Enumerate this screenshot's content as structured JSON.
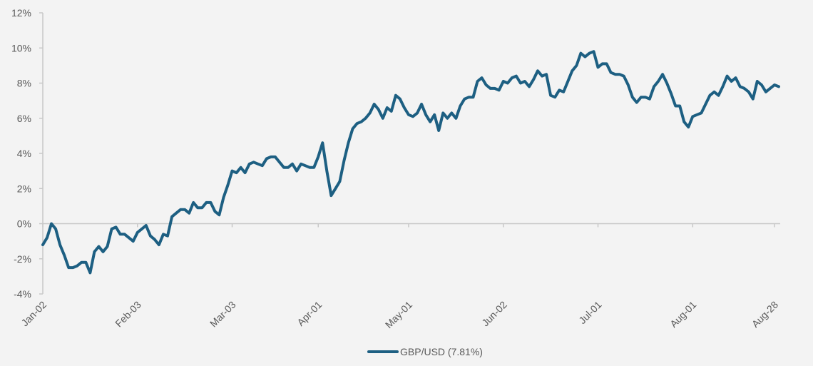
{
  "chart_data": {
    "type": "line",
    "title": "",
    "xlabel": "",
    "ylabel": "",
    "ylim": [
      -0.04,
      0.12
    ],
    "y_ticks": [
      -0.04,
      -0.02,
      0,
      0.02,
      0.04,
      0.06,
      0.08,
      0.1,
      0.12
    ],
    "y_tick_labels": [
      "-4%",
      "-2%",
      "0%",
      "2%",
      "4%",
      "6%",
      "8%",
      "10%",
      "12%"
    ],
    "x_tick_labels": [
      "Jan-02",
      "Feb-03",
      "Mar-03",
      "Apr-01",
      "May-01",
      "Jun-02",
      "Jul-01",
      "Aug-01",
      "Aug-28"
    ],
    "x_tick_positions": [
      0,
      22,
      44,
      64,
      85,
      107,
      129,
      151,
      170
    ],
    "grid": {
      "horizontal": false,
      "vertical": false,
      "zero_line": true
    },
    "legend_position": "bottom-center",
    "colors": {
      "series": "#1d5f82",
      "axis": "#c8c8c8",
      "text": "#595959",
      "background": "#f3f3f3"
    },
    "series": [
      {
        "name": "GBP/USD (7.81%)",
        "values": [
          -0.012,
          -0.008,
          0,
          -0.003,
          -0.012,
          -0.018,
          -0.025,
          -0.025,
          -0.024,
          -0.022,
          -0.022,
          -0.028,
          -0.016,
          -0.013,
          -0.016,
          -0.013,
          -0.003,
          -0.002,
          -0.006,
          -0.006,
          -0.008,
          -0.01,
          -0.005,
          -0.003,
          -0.001,
          -0.007,
          -0.009,
          -0.012,
          -0.006,
          -0.007,
          0.004,
          0.006,
          0.008,
          0.008,
          0.006,
          0.012,
          0.009,
          0.009,
          0.012,
          0.012,
          0.007,
          0.005,
          0.015,
          0.022,
          0.03,
          0.029,
          0.032,
          0.029,
          0.034,
          0.035,
          0.034,
          0.033,
          0.037,
          0.038,
          0.038,
          0.035,
          0.032,
          0.032,
          0.034,
          0.03,
          0.034,
          0.033,
          0.032,
          0.032,
          0.038,
          0.046,
          0.03,
          0.016,
          0.02,
          0.024,
          0.036,
          0.046,
          0.054,
          0.057,
          0.058,
          0.06,
          0.063,
          0.068,
          0.065,
          0.06,
          0.066,
          0.064,
          0.073,
          0.071,
          0.066,
          0.062,
          0.061,
          0.063,
          0.068,
          0.062,
          0.058,
          0.062,
          0.053,
          0.063,
          0.06,
          0.063,
          0.06,
          0.067,
          0.071,
          0.072,
          0.072,
          0.081,
          0.083,
          0.079,
          0.077,
          0.077,
          0.076,
          0.081,
          0.08,
          0.083,
          0.084,
          0.08,
          0.081,
          0.078,
          0.082,
          0.087,
          0.084,
          0.085,
          0.073,
          0.072,
          0.076,
          0.075,
          0.081,
          0.087,
          0.09,
          0.097,
          0.095,
          0.097,
          0.098,
          0.089,
          0.091,
          0.091,
          0.086,
          0.085,
          0.085,
          0.084,
          0.079,
          0.072,
          0.069,
          0.072,
          0.072,
          0.071,
          0.078,
          0.081,
          0.085,
          0.08,
          0.074,
          0.067,
          0.067,
          0.058,
          0.055,
          0.061,
          0.062,
          0.063,
          0.068,
          0.073,
          0.075,
          0.073,
          0.078,
          0.084,
          0.081,
          0.083,
          0.078,
          0.077,
          0.075,
          0.071,
          0.081,
          0.079,
          0.075,
          0.077,
          0.079,
          0.078
        ]
      }
    ]
  }
}
